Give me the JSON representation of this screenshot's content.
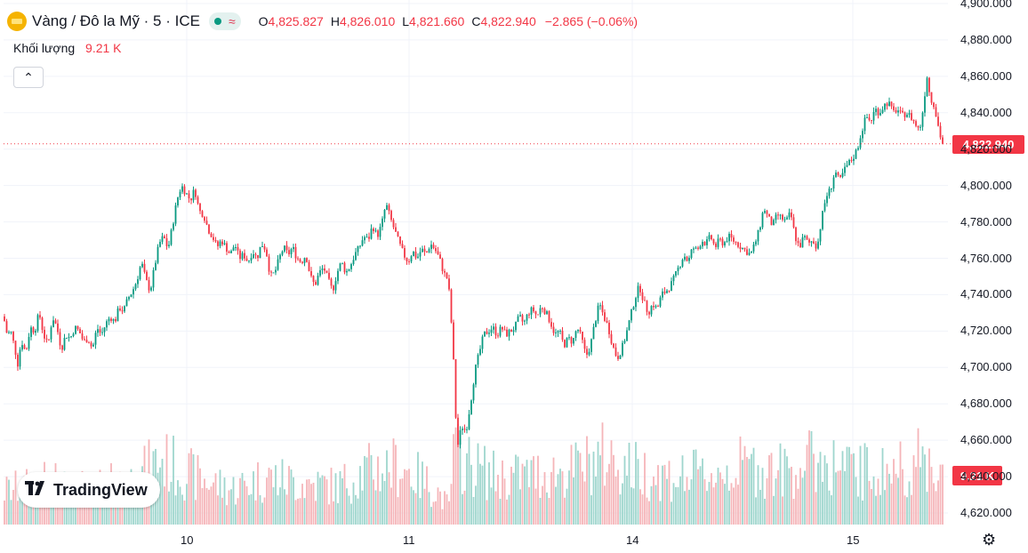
{
  "header": {
    "title": "Vàng / Đô la Mỹ · 5 · ICE",
    "wave_symbol": "≈",
    "o_label": "O",
    "o_value": "4,825.827",
    "h_label": "H",
    "h_value": "4,826.010",
    "l_label": "L",
    "l_value": "4,821.660",
    "c_label": "C",
    "c_value": "4,822.940",
    "change": "−2.865 (−0.06%)"
  },
  "volume": {
    "label": "Khối lượng",
    "value": "9.21 K"
  },
  "collapse_icon": "chevron-up-icon",
  "collapse_glyph": "⌃",
  "logo_mark": "𝟏𝟕",
  "logo_text": "TradingView",
  "price_tag": "4,822.940",
  "volume_tag": "9.21 K",
  "settings_glyph": "⚙",
  "colors": {
    "up": "#089981",
    "down": "#f23645",
    "up_volume": "#9fd6ce",
    "down_volume": "#f5b5b9",
    "grid": "#f0f3fa"
  },
  "chart_data": {
    "type": "candlestick",
    "y_ticks": [
      "4,900.000",
      "4,880.000",
      "4,860.000",
      "4,840.000",
      "4,820.000",
      "4,800.000",
      "4,780.000",
      "4,760.000",
      "4,740.000",
      "4,720.000",
      "4,700.000",
      "4,680.000",
      "4,660.000",
      "4,640.000",
      "4,620.000"
    ],
    "x_ticks": [
      "10",
      "11",
      "14",
      "15"
    ],
    "ylim": [
      4610,
      4902
    ],
    "last_price": 4822.94,
    "price_path": [
      [
        0,
        4728
      ],
      [
        4,
        4718
      ],
      [
        8,
        4720
      ],
      [
        12,
        4712
      ],
      [
        16,
        4702
      ],
      [
        20,
        4715
      ],
      [
        25,
        4708
      ],
      [
        30,
        4722
      ],
      [
        35,
        4720
      ],
      [
        40,
        4730
      ],
      [
        45,
        4718
      ],
      [
        50,
        4712
      ],
      [
        55,
        4728
      ],
      [
        60,
        4722
      ],
      [
        65,
        4710
      ],
      [
        70,
        4718
      ],
      [
        75,
        4716
      ],
      [
        80,
        4722
      ],
      [
        85,
        4720
      ],
      [
        90,
        4714
      ],
      [
        95,
        4716
      ],
      [
        100,
        4710
      ],
      [
        105,
        4722
      ],
      [
        110,
        4718
      ],
      [
        115,
        4724
      ],
      [
        120,
        4728
      ],
      [
        125,
        4725
      ],
      [
        130,
        4733
      ],
      [
        135,
        4731
      ],
      [
        140,
        4738
      ],
      [
        145,
        4742
      ],
      [
        150,
        4748
      ],
      [
        155,
        4758
      ],
      [
        160,
        4748
      ],
      [
        165,
        4742
      ],
      [
        170,
        4756
      ],
      [
        175,
        4768
      ],
      [
        180,
        4772
      ],
      [
        185,
        4765
      ],
      [
        190,
        4778
      ],
      [
        195,
        4792
      ],
      [
        200,
        4800
      ],
      [
        205,
        4796
      ],
      [
        210,
        4792
      ],
      [
        215,
        4798
      ],
      [
        220,
        4786
      ],
      [
        225,
        4784
      ],
      [
        230,
        4776
      ],
      [
        235,
        4772
      ],
      [
        240,
        4766
      ],
      [
        245,
        4770
      ],
      [
        250,
        4766
      ],
      [
        255,
        4762
      ],
      [
        260,
        4768
      ],
      [
        265,
        4760
      ],
      [
        270,
        4762
      ],
      [
        275,
        4758
      ],
      [
        280,
        4764
      ],
      [
        285,
        4760
      ],
      [
        290,
        4768
      ],
      [
        295,
        4765
      ],
      [
        300,
        4750
      ],
      [
        305,
        4752
      ],
      [
        310,
        4760
      ],
      [
        315,
        4766
      ],
      [
        320,
        4762
      ],
      [
        325,
        4766
      ],
      [
        330,
        4760
      ],
      [
        335,
        4758
      ],
      [
        340,
        4762
      ],
      [
        345,
        4750
      ],
      [
        350,
        4745
      ],
      [
        355,
        4752
      ],
      [
        360,
        4755
      ],
      [
        365,
        4748
      ],
      [
        370,
        4742
      ],
      [
        375,
        4752
      ],
      [
        380,
        4758
      ],
      [
        385,
        4752
      ],
      [
        390,
        4756
      ],
      [
        395,
        4762
      ],
      [
        400,
        4766
      ],
      [
        405,
        4772
      ],
      [
        410,
        4770
      ],
      [
        415,
        4778
      ],
      [
        420,
        4772
      ],
      [
        425,
        4778
      ],
      [
        430,
        4790
      ],
      [
        435,
        4782
      ],
      [
        440,
        4775
      ],
      [
        445,
        4768
      ],
      [
        450,
        4762
      ],
      [
        455,
        4758
      ],
      [
        460,
        4764
      ],
      [
        465,
        4760
      ],
      [
        470,
        4765
      ],
      [
        475,
        4762
      ],
      [
        480,
        4768
      ],
      [
        485,
        4765
      ],
      [
        490,
        4760
      ],
      [
        495,
        4752
      ],
      [
        500,
        4748
      ],
      [
        505,
        4715
      ],
      [
        510,
        4655
      ],
      [
        515,
        4668
      ],
      [
        520,
        4665
      ],
      [
        525,
        4680
      ],
      [
        530,
        4698
      ],
      [
        535,
        4708
      ],
      [
        540,
        4718
      ],
      [
        545,
        4720
      ],
      [
        550,
        4722
      ],
      [
        555,
        4718
      ],
      [
        560,
        4722
      ],
      [
        565,
        4718
      ],
      [
        570,
        4720
      ],
      [
        575,
        4722
      ],
      [
        580,
        4728
      ],
      [
        585,
        4724
      ],
      [
        590,
        4730
      ],
      [
        595,
        4732
      ],
      [
        600,
        4728
      ],
      [
        605,
        4734
      ],
      [
        610,
        4730
      ],
      [
        615,
        4725
      ],
      [
        620,
        4718
      ],
      [
        625,
        4720
      ],
      [
        630,
        4712
      ],
      [
        635,
        4716
      ],
      [
        640,
        4714
      ],
      [
        645,
        4722
      ],
      [
        650,
        4716
      ],
      [
        655,
        4706
      ],
      [
        660,
        4712
      ],
      [
        665,
        4725
      ],
      [
        670,
        4735
      ],
      [
        675,
        4728
      ],
      [
        680,
        4722
      ],
      [
        685,
        4712
      ],
      [
        690,
        4705
      ],
      [
        695,
        4710
      ],
      [
        700,
        4718
      ],
      [
        705,
        4728
      ],
      [
        710,
        4738
      ],
      [
        715,
        4745
      ],
      [
        720,
        4736
      ],
      [
        725,
        4730
      ],
      [
        730,
        4735
      ],
      [
        735,
        4732
      ],
      [
        740,
        4740
      ],
      [
        745,
        4742
      ],
      [
        750,
        4745
      ],
      [
        755,
        4750
      ],
      [
        760,
        4756
      ],
      [
        765,
        4762
      ],
      [
        770,
        4758
      ],
      [
        775,
        4766
      ],
      [
        780,
        4764
      ],
      [
        785,
        4770
      ],
      [
        790,
        4768
      ],
      [
        795,
        4772
      ],
      [
        800,
        4766
      ],
      [
        805,
        4770
      ],
      [
        810,
        4768
      ],
      [
        815,
        4772
      ],
      [
        820,
        4770
      ],
      [
        825,
        4768
      ],
      [
        830,
        4766
      ],
      [
        835,
        4764
      ],
      [
        840,
        4762
      ],
      [
        845,
        4768
      ],
      [
        850,
        4776
      ],
      [
        855,
        4788
      ],
      [
        860,
        4782
      ],
      [
        865,
        4778
      ],
      [
        870,
        4784
      ],
      [
        875,
        4782
      ],
      [
        880,
        4780
      ],
      [
        885,
        4785
      ],
      [
        890,
        4772
      ],
      [
        895,
        4766
      ],
      [
        900,
        4772
      ],
      [
        905,
        4768
      ],
      [
        910,
        4770
      ],
      [
        915,
        4766
      ],
      [
        920,
        4782
      ],
      [
        925,
        4794
      ],
      [
        930,
        4798
      ],
      [
        935,
        4808
      ],
      [
        940,
        4802
      ],
      [
        945,
        4808
      ],
      [
        950,
        4812
      ],
      [
        955,
        4815
      ],
      [
        960,
        4820
      ],
      [
        965,
        4830
      ],
      [
        970,
        4838
      ],
      [
        975,
        4835
      ],
      [
        980,
        4842
      ],
      [
        985,
        4840
      ],
      [
        990,
        4844
      ],
      [
        995,
        4846
      ],
      [
        1000,
        4840
      ],
      [
        1005,
        4842
      ],
      [
        1010,
        4838
      ],
      [
        1015,
        4840
      ],
      [
        1020,
        4838
      ],
      [
        1025,
        4834
      ],
      [
        1030,
        4830
      ],
      [
        1035,
        4845
      ],
      [
        1038,
        4862
      ],
      [
        1042,
        4848
      ],
      [
        1046,
        4845
      ],
      [
        1050,
        4835
      ],
      [
        1054,
        4826
      ],
      [
        1058,
        4820
      ],
      [
        1062,
        4823
      ]
    ],
    "volume_range": [
      0,
      14
    ],
    "volume_path": [
      [
        0,
        5.5
      ],
      [
        50,
        7
      ],
      [
        100,
        6
      ],
      [
        150,
        7.5
      ],
      [
        180,
        11
      ],
      [
        220,
        8
      ],
      [
        260,
        6
      ],
      [
        300,
        8
      ],
      [
        340,
        7
      ],
      [
        380,
        6.5
      ],
      [
        410,
        9
      ],
      [
        450,
        10
      ],
      [
        490,
        6
      ],
      [
        505,
        3
      ],
      [
        510,
        12
      ],
      [
        530,
        10
      ],
      [
        560,
        8
      ],
      [
        600,
        8.5
      ],
      [
        640,
        9
      ],
      [
        680,
        11.5
      ],
      [
        720,
        9
      ],
      [
        760,
        8
      ],
      [
        800,
        8.5
      ],
      [
        840,
        10
      ],
      [
        880,
        9
      ],
      [
        920,
        11
      ],
      [
        960,
        9
      ],
      [
        1000,
        9
      ],
      [
        1040,
        11
      ],
      [
        1062,
        9
      ]
    ]
  }
}
